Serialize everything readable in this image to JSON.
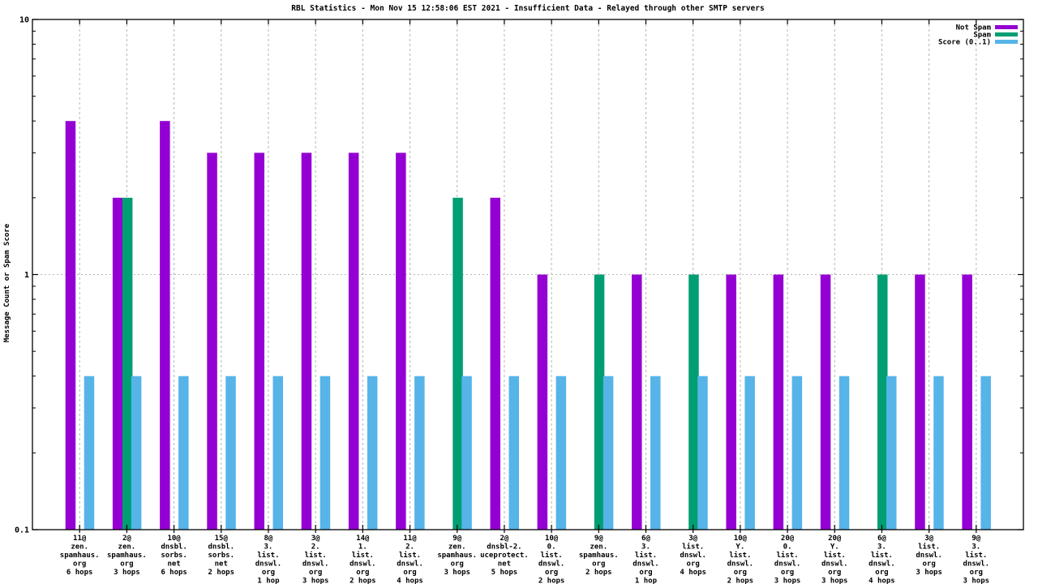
{
  "chart_data": {
    "type": "bar",
    "title": "RBL Statistics - Mon Nov 15 12:58:06 EST 2021 - Insufficient Data - Relayed through other SMTP servers",
    "ylabel": "Message Count or Spam Score",
    "yscale": "log",
    "ylim": [
      0.1,
      10
    ],
    "ytick_labels": [
      "10",
      "1",
      "0.1"
    ],
    "ytick_values": [
      10,
      1,
      0.1
    ],
    "grid_x": true,
    "grid_y_at": 1,
    "legend_position": "top-right",
    "colors": {
      "not_spam": "#9400d3",
      "spam": "#009e73",
      "score": "#56b4e9",
      "grid": "#b5b5b5",
      "border": "#000000",
      "background": "#ffffff"
    },
    "categories": [
      [
        "11@",
        "zen.",
        "spamhaus.",
        "org",
        "6 hops"
      ],
      [
        "2@",
        "zen.",
        "spamhaus.",
        "org",
        "3 hops"
      ],
      [
        "10@",
        "dnsbl.",
        "sorbs.",
        "net",
        "6 hops"
      ],
      [
        "15@",
        "dnsbl.",
        "sorbs.",
        "net",
        "2 hops"
      ],
      [
        "8@",
        "3.",
        "list.",
        "dnswl.",
        "org",
        "1 hop"
      ],
      [
        "3@",
        "2.",
        "list.",
        "dnswl.",
        "org",
        "3 hops"
      ],
      [
        "14@",
        "1.",
        "list.",
        "dnswl.",
        "org",
        "2 hops"
      ],
      [
        "11@",
        "2.",
        "list.",
        "dnswl.",
        "org",
        "4 hops"
      ],
      [
        "9@",
        "zen.",
        "spamhaus.",
        "org",
        "3 hops"
      ],
      [
        "2@",
        "dnsbl-2.",
        "uceprotect.",
        "net",
        "5 hops"
      ],
      [
        "10@",
        "0.",
        "list.",
        "dnswl.",
        "org",
        "2 hops"
      ],
      [
        "9@",
        "zen.",
        "spamhaus.",
        "org",
        "2 hops"
      ],
      [
        "6@",
        "3.",
        "list.",
        "dnswl.",
        "org",
        "1 hop"
      ],
      [
        "3@",
        "list.",
        "dnswl.",
        "org",
        "4 hops"
      ],
      [
        "10@",
        "Y.",
        "list.",
        "dnswl.",
        "org",
        "2 hops"
      ],
      [
        "20@",
        "0.",
        "list.",
        "dnswl.",
        "org",
        "3 hops"
      ],
      [
        "20@",
        "Y.",
        "list.",
        "dnswl.",
        "org",
        "3 hops"
      ],
      [
        "6@",
        "3.",
        "list.",
        "dnswl.",
        "org",
        "4 hops"
      ],
      [
        "3@",
        "list.",
        "dnswl.",
        "org",
        "3 hops"
      ],
      [
        "9@",
        "3.",
        "list.",
        "dnswl.",
        "org",
        "3 hops"
      ]
    ],
    "series": [
      {
        "name": "Not Spam",
        "color": "#9400d3",
        "values": [
          4,
          2,
          4,
          3,
          3,
          3,
          3,
          3,
          null,
          2,
          1,
          null,
          1,
          null,
          1,
          1,
          1,
          null,
          1,
          1
        ]
      },
      {
        "name": "Spam",
        "color": "#009e73",
        "values": [
          null,
          2,
          null,
          null,
          null,
          null,
          null,
          null,
          2,
          null,
          null,
          1,
          null,
          1,
          null,
          null,
          null,
          1,
          null,
          null
        ]
      },
      {
        "name": "Score (0..1)",
        "color": "#56b4e9",
        "values": [
          0.4,
          0.4,
          0.4,
          0.4,
          0.4,
          0.4,
          0.4,
          0.4,
          0.4,
          0.4,
          0.4,
          0.4,
          0.4,
          0.4,
          0.4,
          0.4,
          0.4,
          0.4,
          0.4,
          0.4
        ]
      }
    ]
  }
}
